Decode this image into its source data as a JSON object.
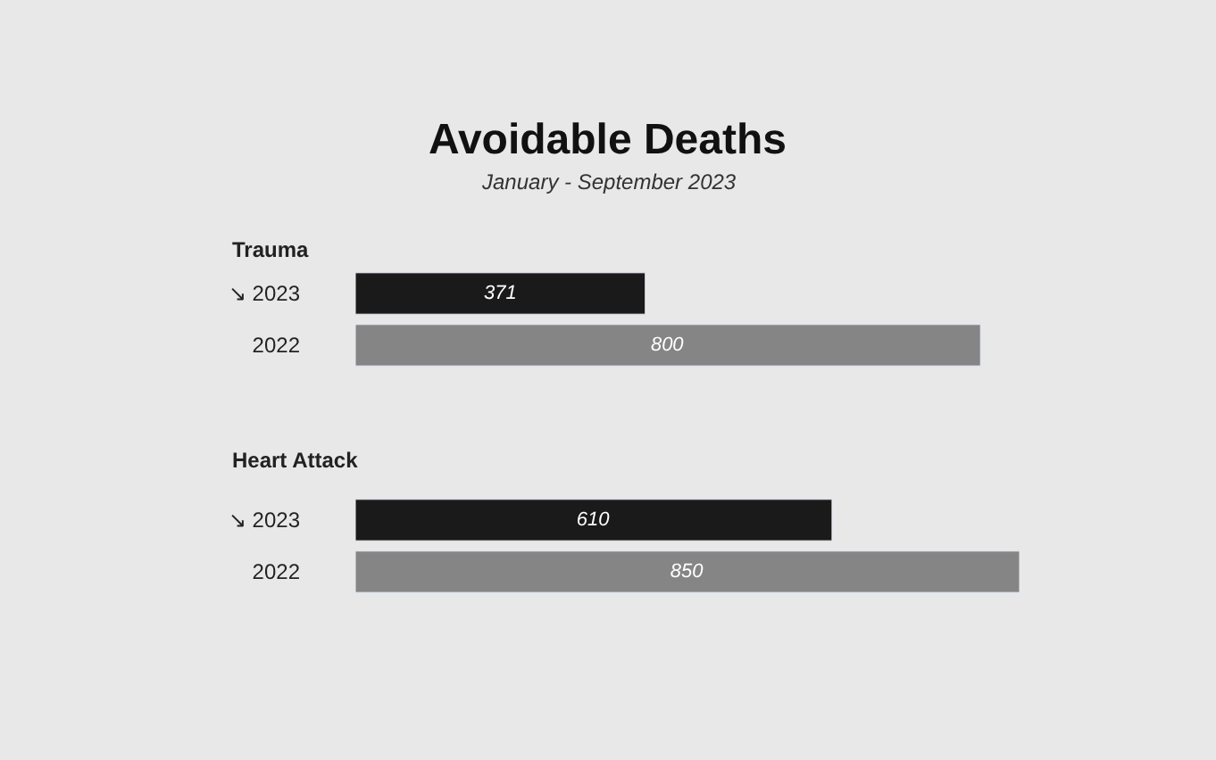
{
  "chart_data": [
    {
      "type": "other",
      "title": "Avoidable Deaths",
      "subtitle": "January - September 2023"
    },
    {
      "type": "bar",
      "orientation": "horizontal",
      "title": "Trauma",
      "categories": [
        "↘ 2023",
        "2022"
      ],
      "values": [
        371,
        800
      ],
      "colors": [
        "#1a1a1a",
        "#858585"
      ],
      "data_labels": true
    },
    {
      "type": "bar",
      "orientation": "horizontal",
      "title": "Heart Attack",
      "categories": [
        "↘ 2023",
        "2022"
      ],
      "values": [
        610,
        850
      ],
      "colors": [
        "#1a1a1a",
        "#858585"
      ],
      "data_labels": true
    }
  ]
}
